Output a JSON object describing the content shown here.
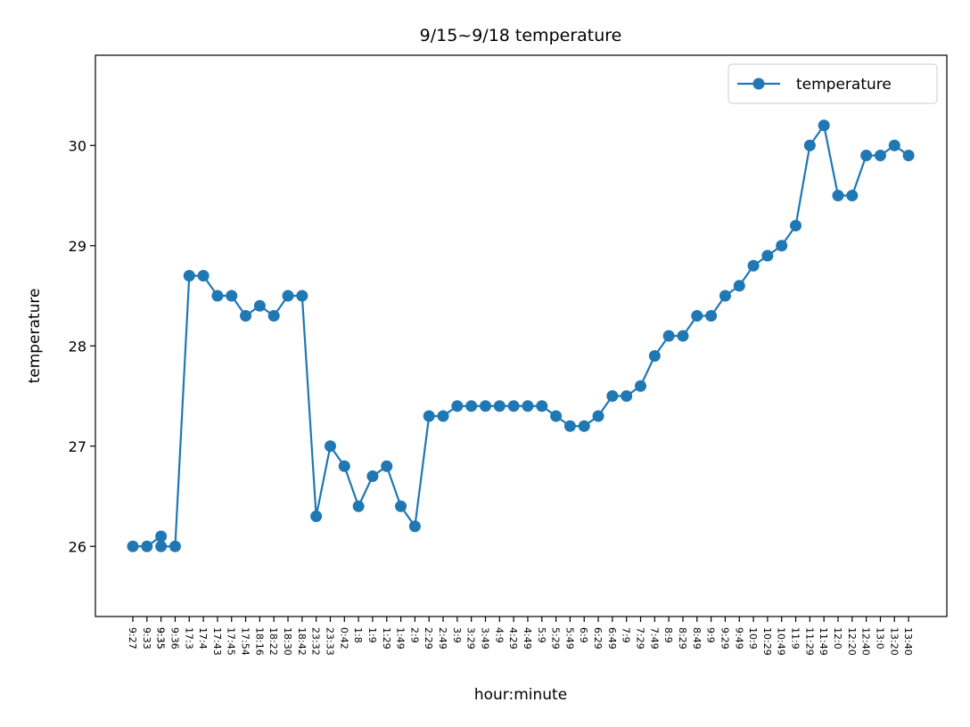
{
  "chart_data": {
    "type": "line",
    "title": "9/15~9/18 temperature",
    "x_label": "hour:minute",
    "y_label": "temperature",
    "categories": [
      "9:27",
      "9:33",
      "9:35",
      "9:35",
      "9:36",
      "17:3",
      "17:4",
      "17:43",
      "17:45",
      "17:54",
      "18:16",
      "18:22",
      "18:30",
      "18:42",
      "23:32",
      "23:33",
      "0:42",
      "1:8",
      "1:9",
      "1:29",
      "1:49",
      "2:9",
      "2:29",
      "2:49",
      "3:9",
      "3:29",
      "3:49",
      "4:9",
      "4:29",
      "4:49",
      "5:9",
      "5:29",
      "5:49",
      "6:9",
      "6:29",
      "6:49",
      "7:9",
      "7:29",
      "7:49",
      "8:9",
      "8:29",
      "8:49",
      "9:9",
      "9:29",
      "9:49",
      "10:9",
      "10:29",
      "10:49",
      "11:9",
      "11:29",
      "11:49",
      "12:0",
      "12:20",
      "12:40",
      "13:0",
      "13:20",
      "13:40"
    ],
    "series": [
      {
        "name": "temperature",
        "color": "#1f77b4",
        "values": [
          26.0,
          26.0,
          26.1,
          26.0,
          26.0,
          28.7,
          28.7,
          28.5,
          28.5,
          28.3,
          28.4,
          28.3,
          28.5,
          28.5,
          26.3,
          27.0,
          26.8,
          26.4,
          26.7,
          26.8,
          26.4,
          26.2,
          27.3,
          27.3,
          27.4,
          27.4,
          27.4,
          27.4,
          27.4,
          27.4,
          27.4,
          27.3,
          27.2,
          27.2,
          27.3,
          27.5,
          27.5,
          27.6,
          27.9,
          28.1,
          28.1,
          28.3,
          28.3,
          28.5,
          28.6,
          28.8,
          28.9,
          29.0,
          29.2,
          30.0,
          30.2,
          29.5,
          29.5,
          29.9,
          29.9,
          30.0,
          29.9
        ]
      }
    ],
    "ylim": [
      25.3,
      30.9
    ],
    "yticks": [
      26,
      27,
      28,
      29,
      30
    ],
    "legend": "upper right"
  }
}
